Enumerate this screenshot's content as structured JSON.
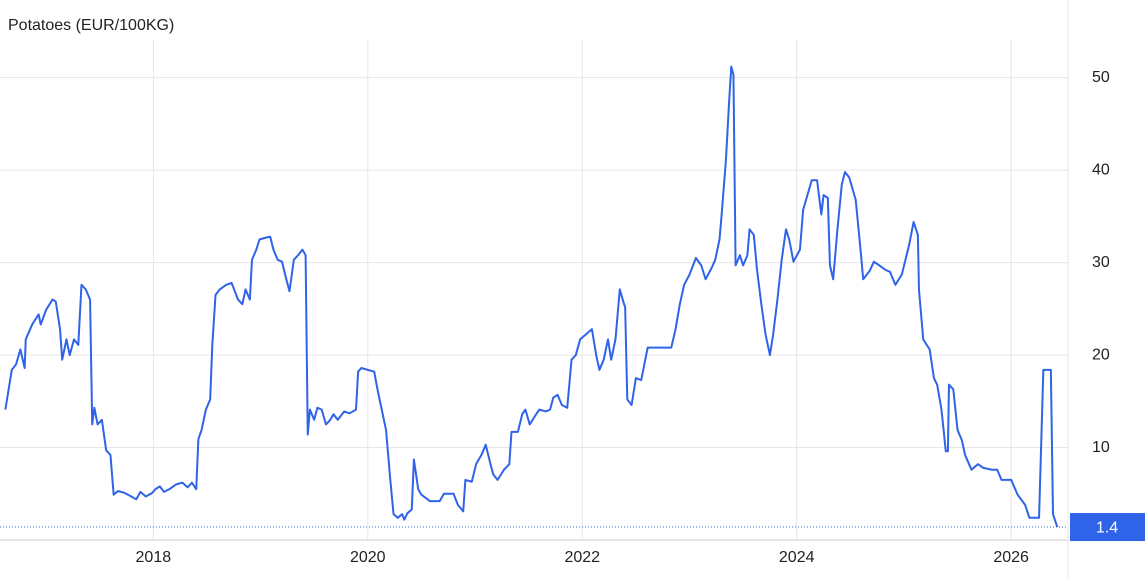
{
  "chart_data": {
    "type": "line",
    "title": "Potatoes (EUR/100KG)",
    "x": [
      2016.62,
      2016.68,
      2016.72,
      2016.76,
      2016.8,
      2016.81,
      2016.87,
      2016.93,
      2016.95,
      2017.0,
      2017.06,
      2017.09,
      2017.13,
      2017.15,
      2017.19,
      2017.22,
      2017.26,
      2017.3,
      2017.33,
      2017.37,
      2017.41,
      2017.43,
      2017.45,
      2017.48,
      2017.52,
      2017.56,
      2017.6,
      2017.63,
      2017.67,
      2017.73,
      2017.78,
      2017.84,
      2017.88,
      2017.93,
      2017.99,
      2018.02,
      2018.06,
      2018.1,
      2018.15,
      2018.21,
      2018.27,
      2018.32,
      2018.36,
      2018.4,
      2018.42,
      2018.45,
      2018.49,
      2018.53,
      2018.55,
      2018.58,
      2018.62,
      2018.68,
      2018.73,
      2018.79,
      2018.83,
      2018.86,
      2018.9,
      2018.92,
      2018.96,
      2018.99,
      2019.05,
      2019.09,
      2019.12,
      2019.16,
      2019.2,
      2019.24,
      2019.27,
      2019.31,
      2019.35,
      2019.39,
      2019.42,
      2019.44,
      2019.46,
      2019.5,
      2019.53,
      2019.57,
      2019.61,
      2019.65,
      2019.68,
      2019.72,
      2019.78,
      2019.83,
      2019.89,
      2019.91,
      2019.94,
      2020.0,
      2020.06,
      2020.09,
      2020.17,
      2020.21,
      2020.24,
      2020.28,
      2020.32,
      2020.34,
      2020.37,
      2020.41,
      2020.43,
      2020.47,
      2020.5,
      2020.58,
      2020.67,
      2020.71,
      2020.8,
      2020.84,
      2020.89,
      2020.91,
      2020.97,
      2021.01,
      2021.06,
      2021.1,
      2021.14,
      2021.17,
      2021.21,
      2021.27,
      2021.32,
      2021.34,
      2021.4,
      2021.44,
      2021.47,
      2021.51,
      2021.57,
      2021.6,
      2021.66,
      2021.7,
      2021.73,
      2021.77,
      2021.81,
      2021.86,
      2021.9,
      2021.94,
      2021.98,
      2022.03,
      2022.09,
      2022.13,
      2022.16,
      2022.2,
      2022.24,
      2022.27,
      2022.31,
      2022.35,
      2022.39,
      2022.4,
      2022.42,
      2022.46,
      2022.5,
      2022.55,
      2022.61,
      2022.72,
      2022.83,
      2022.87,
      2022.91,
      2022.95,
      2023.0,
      2023.06,
      2023.11,
      2023.15,
      2023.21,
      2023.24,
      2023.28,
      2023.3,
      2023.34,
      2023.37,
      2023.39,
      2023.41,
      2023.43,
      2023.47,
      2023.5,
      2023.54,
      2023.56,
      2023.6,
      2023.63,
      2023.67,
      2023.71,
      2023.75,
      2023.78,
      2023.82,
      2023.86,
      2023.9,
      2023.93,
      2023.97,
      2024.03,
      2024.06,
      2024.1,
      2024.14,
      2024.19,
      2024.23,
      2024.25,
      2024.29,
      2024.31,
      2024.34,
      2024.38,
      2024.42,
      2024.45,
      2024.49,
      2024.55,
      2024.6,
      2024.62,
      2024.68,
      2024.72,
      2024.77,
      2024.83,
      2024.87,
      2024.92,
      2024.98,
      2025.01,
      2025.05,
      2025.09,
      2025.13,
      2025.14,
      2025.18,
      2025.24,
      2025.28,
      2025.31,
      2025.35,
      2025.37,
      2025.39,
      2025.41,
      2025.42,
      2025.46,
      2025.5,
      2025.54,
      2025.57,
      2025.63,
      2025.69,
      2025.74,
      2025.82,
      2025.87,
      2025.91,
      2026.0,
      2026.06,
      2026.13,
      2026.17,
      2026.26,
      2026.3,
      2026.37,
      2026.39,
      2026.43
    ],
    "series": [
      {
        "color": "#2f63e8",
        "values": [
          14.1,
          18.4,
          19,
          20.6,
          18.6,
          21.7,
          23.3,
          24.4,
          23.3,
          24.9,
          26,
          25.8,
          22.8,
          19.5,
          21.7,
          20,
          21.7,
          21.1,
          27.6,
          27.1,
          26,
          12.5,
          14.3,
          12.5,
          13,
          9.7,
          9.2,
          4.9,
          5.3,
          5.1,
          4.8,
          4.4,
          5.2,
          4.7,
          5.1,
          5.5,
          5.8,
          5.2,
          5.5,
          6,
          6.2,
          5.7,
          6.2,
          5.5,
          10.9,
          11.9,
          14.1,
          15.2,
          21.1,
          26.5,
          27.1,
          27.6,
          27.8,
          26,
          25.5,
          27.1,
          26,
          30.3,
          31.4,
          32.5,
          32.7,
          32.8,
          31.4,
          30.3,
          30.1,
          28.2,
          26.9,
          30.3,
          30.8,
          31.4,
          30.8,
          11.4,
          14.1,
          13,
          14.3,
          14.1,
          12.5,
          13,
          13.6,
          13,
          13.9,
          13.7,
          14.1,
          18.2,
          18.6,
          18.4,
          18.2,
          16.3,
          11.9,
          6.5,
          2.8,
          2.4,
          2.8,
          2.2,
          2.9,
          3.3,
          8.7,
          5.5,
          4.9,
          4.2,
          4.2,
          5,
          5,
          3.8,
          3.1,
          6.5,
          6.3,
          8.2,
          9.2,
          10.3,
          8.4,
          7.1,
          6.5,
          7.6,
          8.2,
          11.7,
          11.7,
          13.6,
          14.1,
          12.5,
          13.6,
          14.1,
          13.9,
          14.1,
          15.4,
          15.7,
          14.6,
          14.3,
          19.5,
          20,
          21.7,
          22.2,
          22.8,
          20,
          18.4,
          19.5,
          21.7,
          19.5,
          21.7,
          27.1,
          25.5,
          25.2,
          15.2,
          14.6,
          17.5,
          17.3,
          20.8,
          20.8,
          20.8,
          22.8,
          25.5,
          27.6,
          28.7,
          30.5,
          29.7,
          28.2,
          29.5,
          30.3,
          32.5,
          35.2,
          41.1,
          47.5,
          51.2,
          50.3,
          29.7,
          30.8,
          29.7,
          30.8,
          33.6,
          33,
          29.2,
          25.5,
          22.2,
          20,
          22.2,
          26,
          30.3,
          33.6,
          32.5,
          30.1,
          31.4,
          35.7,
          37.3,
          38.9,
          38.9,
          35.2,
          37.3,
          37,
          29.7,
          28.2,
          33.6,
          38.4,
          39.8,
          39.2,
          36.8,
          30.8,
          28.2,
          29.1,
          30.1,
          29.7,
          29.2,
          29,
          27.6,
          28.7,
          30.1,
          32,
          34.4,
          33,
          27.1,
          21.7,
          20.6,
          17.5,
          16.8,
          14.1,
          11.9,
          9.6,
          9.6,
          16.8,
          16.3,
          11.9,
          10.8,
          9.2,
          7.6,
          8.2,
          7.8,
          7.6,
          7.6,
          6.5,
          6.5,
          4.9,
          3.8,
          2.4,
          2.4,
          18.4,
          18.4,
          2.8,
          1.4
        ]
      }
    ],
    "xlim": [
      2016.57,
      2026.53
    ],
    "xticks": [
      2018,
      2020,
      2022,
      2024,
      2026
    ],
    "ylim": [
      0,
      58.4
    ],
    "yticks": [
      10,
      20,
      30,
      40,
      50
    ],
    "grid": true
  }
}
